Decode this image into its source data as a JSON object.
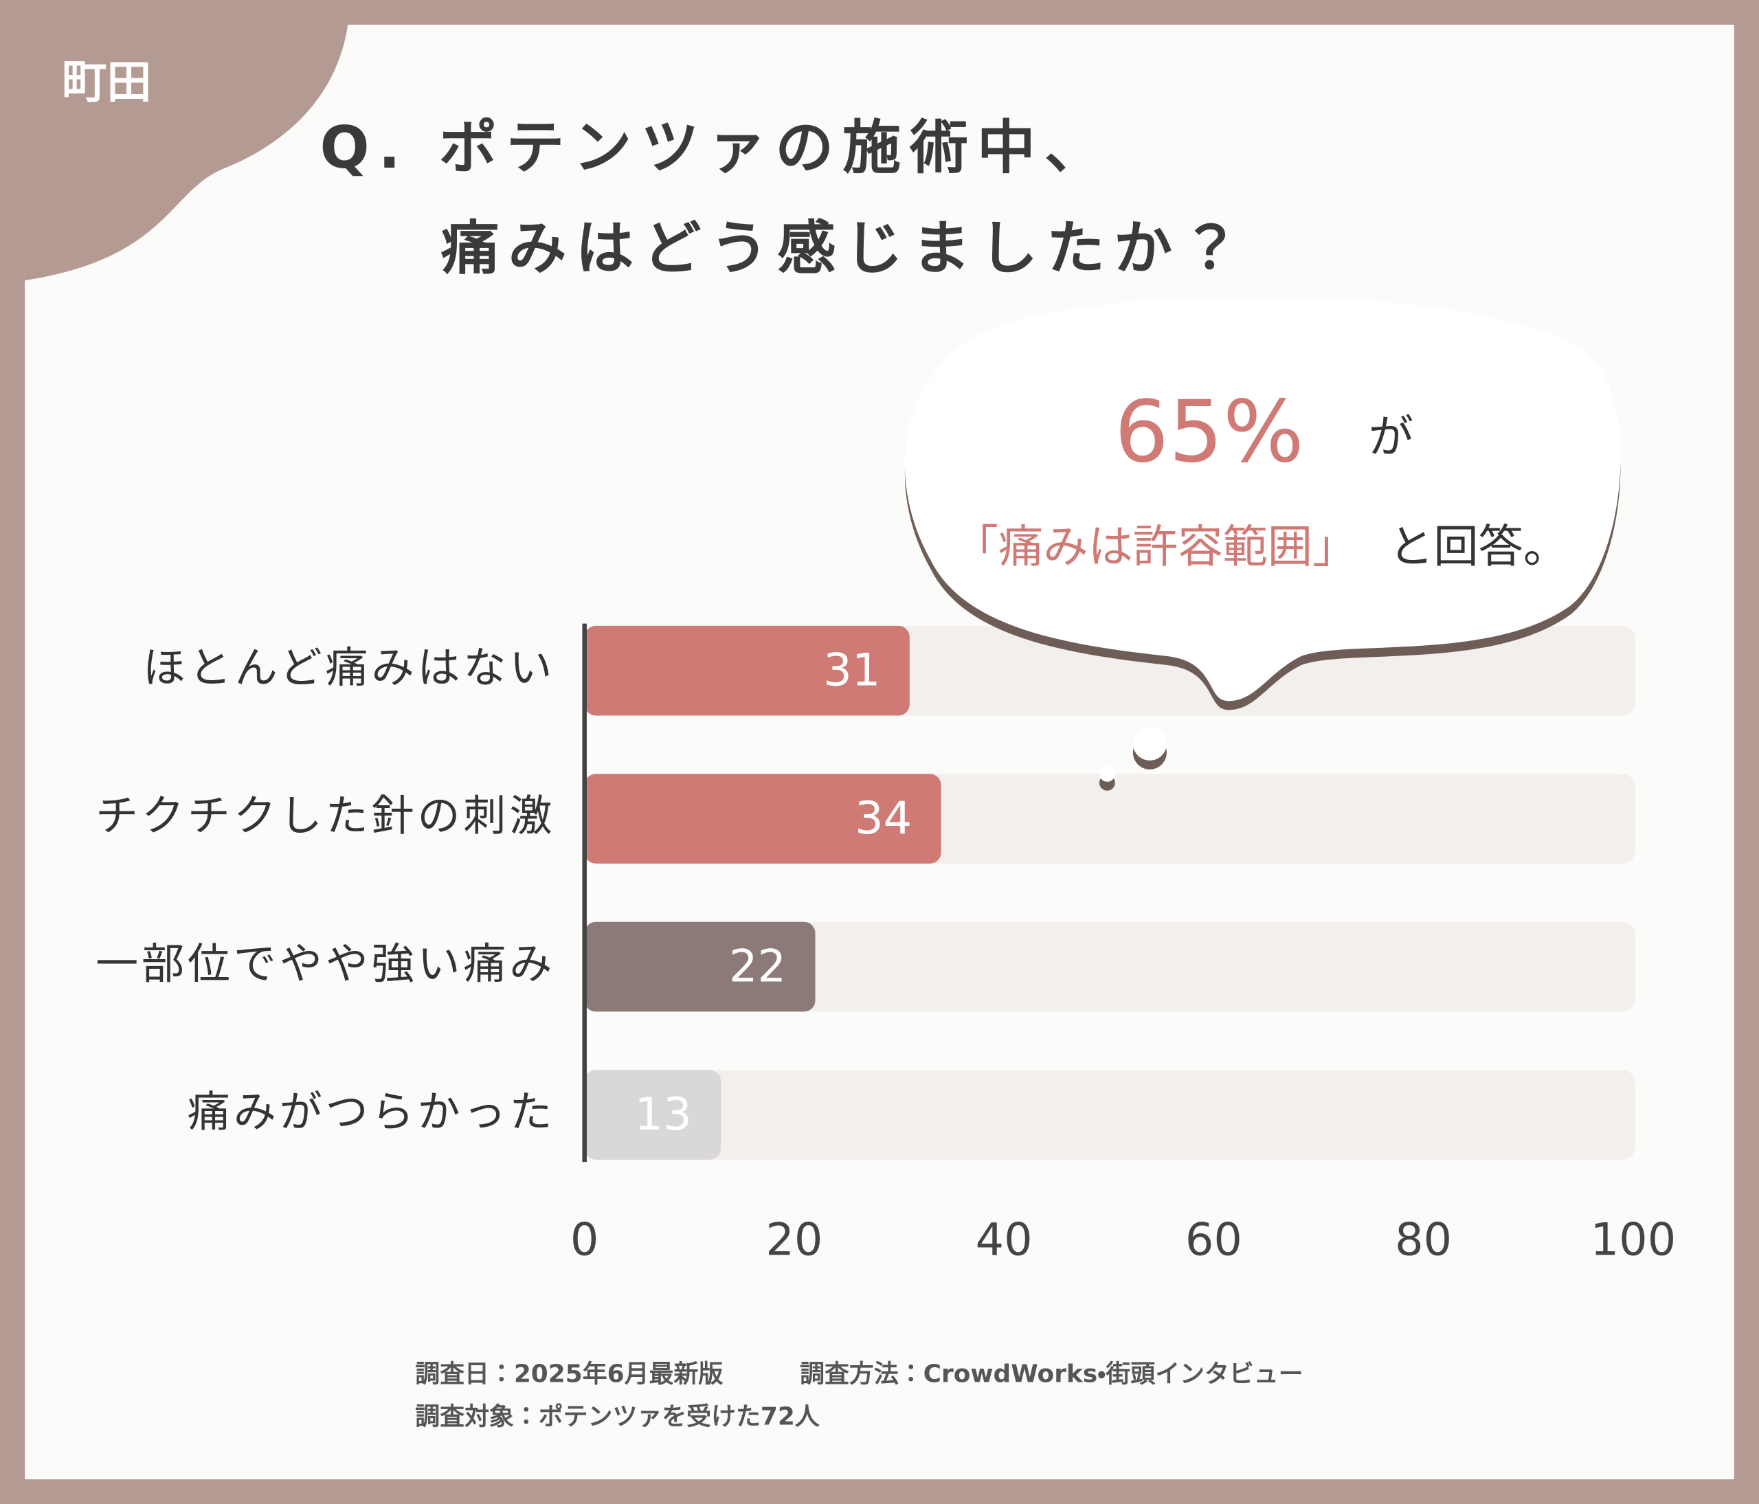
{
  "chart_data": {
    "type": "bar",
    "orientation": "horizontal",
    "logo": "町田",
    "title_lines": [
      "Q. ポテンツァの施術中、",
      "痛みはどう感じましたか？"
    ],
    "callout": {
      "headline": "65%",
      "headline_suffix": "が",
      "highlight": "「痛みは許容範囲」",
      "text": "と回答。"
    },
    "categories": [
      "ほとんど痛みはない",
      "チクチクした針の刺激",
      "一部位でやや強い痛み",
      "痛みがつらかった"
    ],
    "values": [
      31,
      34,
      22,
      13
    ],
    "colors": [
      "#d07a75",
      "#d07a75",
      "#8c7a78",
      "#d9d7d7"
    ],
    "xlim": [
      0,
      100
    ],
    "xticks": [
      0,
      20,
      40,
      60,
      80,
      100
    ],
    "footnotes": [
      "調査日：2025年6月最新版",
      "調査方法：CrowdWorks・街頭インタビュー",
      "調査対象：ポテンツァを受けた72人"
    ]
  }
}
